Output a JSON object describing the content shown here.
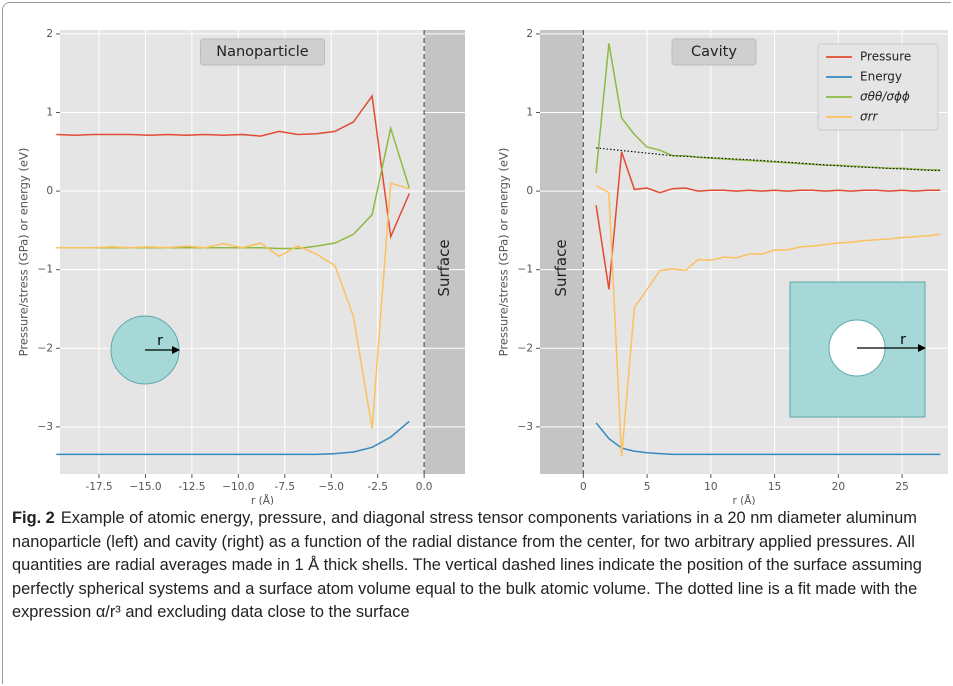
{
  "chart_data": [
    {
      "type": "line",
      "annotation": "Nanoparticle",
      "surface_label": "Surface",
      "surface_x": 0,
      "surface_side": "right",
      "inset": "sphere",
      "inset_label": "r",
      "xlabel": "r (Å)",
      "ylabel": "Pressure/stress (GPa) or energy (eV)",
      "grid": true,
      "xlim": [
        -19.6,
        2.2
      ],
      "ylim": [
        -3.6,
        2.05
      ],
      "xticks": [
        -17.5,
        {
          "value": -15,
          "label": "−15.0"
        },
        -12.5,
        {
          "value": -10,
          "label": "−10.0"
        },
        -7.5,
        {
          "value": -5,
          "label": "−5.0"
        },
        -2.5,
        {
          "value": 0,
          "label": "0.0"
        }
      ],
      "yticks": [
        {
          "value": -3,
          "label": "−3"
        },
        {
          "value": -2,
          "label": "−2"
        },
        {
          "value": -1,
          "label": "−1"
        },
        0,
        1,
        2
      ],
      "x": [
        -19.8,
        -18.8,
        -17.8,
        -16.8,
        -15.8,
        -14.8,
        -13.8,
        -12.8,
        -11.8,
        -10.8,
        -9.8,
        -8.8,
        -7.8,
        -6.8,
        -5.8,
        -4.8,
        -3.8,
        -2.8,
        -1.8,
        -0.8
      ],
      "series": [
        {
          "color": "#e24a33",
          "values": [
            0.72,
            0.71,
            0.72,
            0.72,
            0.72,
            0.71,
            0.72,
            0.71,
            0.72,
            0.71,
            0.72,
            0.7,
            0.76,
            0.72,
            0.73,
            0.76,
            0.88,
            1.21,
            -0.58,
            -0.03
          ]
        },
        {
          "color": "#348abd",
          "values": [
            -3.35,
            -3.35,
            -3.35,
            -3.35,
            -3.35,
            -3.35,
            -3.35,
            -3.35,
            -3.35,
            -3.35,
            -3.35,
            -3.35,
            -3.35,
            -3.35,
            -3.35,
            -3.34,
            -3.32,
            -3.26,
            -3.13,
            -2.93
          ]
        },
        {
          "color": "#8eba42",
          "values": [
            -0.72,
            -0.72,
            -0.72,
            -0.72,
            -0.72,
            -0.72,
            -0.72,
            -0.72,
            -0.72,
            -0.72,
            -0.72,
            -0.72,
            -0.73,
            -0.73,
            -0.7,
            -0.66,
            -0.55,
            -0.3,
            0.8,
            0.04
          ]
        },
        {
          "color": "#fbc15e",
          "values": [
            -0.72,
            -0.72,
            -0.72,
            -0.71,
            -0.72,
            -0.71,
            -0.72,
            -0.7,
            -0.72,
            -0.67,
            -0.72,
            -0.66,
            -0.83,
            -0.7,
            -0.8,
            -0.95,
            -1.6,
            -3.02,
            0.1,
            0.03
          ]
        }
      ]
    },
    {
      "type": "line",
      "annotation": "Cavity",
      "surface_label": "Surface",
      "surface_x": 0,
      "surface_side": "left",
      "inset": "hole",
      "inset_label": "r",
      "xlabel": "r (Å)",
      "ylabel": "Pressure/stress (GPa) or energy (eV)",
      "grid": true,
      "legend": "upper right",
      "xlim": [
        -3.4,
        28.6
      ],
      "ylim": [
        -3.6,
        2.05
      ],
      "xticks": [
        0,
        5,
        10,
        15,
        20,
        25
      ],
      "yticks": [
        {
          "value": -3,
          "label": "−3"
        },
        {
          "value": -2,
          "label": "−2"
        },
        {
          "value": -1,
          "label": "−1"
        },
        0,
        1,
        2
      ],
      "x": [
        1,
        2,
        3,
        4,
        5,
        6,
        7,
        8,
        9,
        10,
        11,
        12,
        13,
        14,
        15,
        16,
        17,
        18,
        19,
        20,
        21,
        22,
        23,
        24,
        25,
        26,
        27,
        28
      ],
      "series": [
        {
          "name": "Pressure",
          "color": "#e24a33",
          "values": [
            -0.18,
            -1.25,
            0.5,
            0.02,
            0.04,
            -0.02,
            0.03,
            0.04,
            0.0,
            0.01,
            0.01,
            0.0,
            0.01,
            0.0,
            0.01,
            0.0,
            0.01,
            0.01,
            0.0,
            0.01,
            0.0,
            0.01,
            0.01,
            0.0,
            0.01,
            0.0,
            0.01,
            0.01
          ]
        },
        {
          "name": "Energy",
          "color": "#348abd",
          "values": [
            -2.95,
            -3.15,
            -3.27,
            -3.31,
            -3.33,
            -3.34,
            -3.35,
            -3.35,
            -3.35,
            -3.35,
            -3.35,
            -3.35,
            -3.35,
            -3.35,
            -3.35,
            -3.35,
            -3.35,
            -3.35,
            -3.35,
            -3.35,
            -3.35,
            -3.35,
            -3.35,
            -3.35,
            -3.35,
            -3.35,
            -3.35,
            -3.35
          ]
        },
        {
          "name": "σθθ/σϕϕ",
          "color": "#8eba42",
          "values": [
            0.23,
            1.88,
            0.93,
            0.72,
            0.56,
            0.52,
            0.45,
            0.45,
            0.43,
            0.42,
            0.41,
            0.4,
            0.39,
            0.38,
            0.37,
            0.36,
            0.35,
            0.34,
            0.33,
            0.33,
            0.32,
            0.31,
            0.3,
            0.29,
            0.29,
            0.28,
            0.27,
            0.27
          ]
        },
        {
          "name": "σrr",
          "color": "#fbc15e",
          "values": [
            0.07,
            -0.02,
            -3.38,
            -1.48,
            -1.25,
            -1.01,
            -0.99,
            -1.01,
            -0.87,
            -0.88,
            -0.84,
            -0.85,
            -0.8,
            -0.8,
            -0.75,
            -0.75,
            -0.71,
            -0.7,
            -0.68,
            -0.66,
            -0.65,
            -0.63,
            -0.62,
            -0.61,
            -0.59,
            -0.58,
            -0.57,
            -0.55
          ]
        }
      ],
      "fit": {
        "color": "#000000",
        "x": [
          1,
          7,
          14,
          21,
          28
        ],
        "values": [
          0.55,
          0.45,
          0.39,
          0.31,
          0.26
        ]
      }
    }
  ],
  "caption": {
    "label": "Fig. 2",
    "text": "Example of atomic energy, pressure, and diagonal stress tensor components variations in a 20 nm diameter aluminum nanoparticle (left) and cavity (right) as a function of the radial distance from the center, for two arbitrary applied pressures. All quantities are radial averages made in 1 Å thick shells. The vertical dashed lines indicate the position of the surface assuming perfectly spherical systems and a surface atom volume equal to the bulk atomic volume. The dotted line is a fit made with the expression α/r³ and excluding data close to the surface"
  }
}
